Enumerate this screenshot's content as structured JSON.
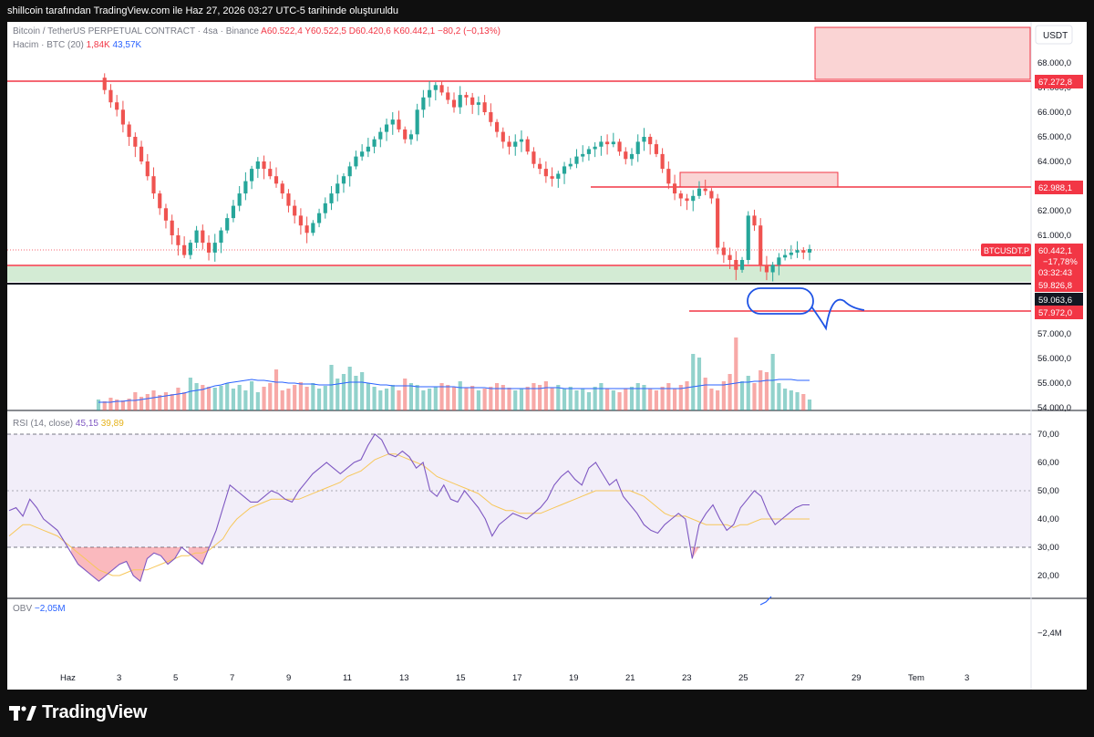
{
  "header": {
    "caption": "shillcoin tarafından TradingView.com ile Haz 27, 2026 03:27 UTC-5 tarihinde oluşturuldu"
  },
  "legend": {
    "symbol": "Bitcoin / TetherUS PERPETUAL CONTRACT · 4sa · Binance",
    "ohlc": "A60.522,4  Y60.522,5  D60.420,6  K60.442,1  −80,2 (−0,13%)",
    "volume_label": "Hacim · BTC (20)",
    "volume_value": "1,84K",
    "volume_ma": "43,57K",
    "rsi_label": "RSI (14, close)",
    "rsi_value": "45,15",
    "rsi_ma": "39,89",
    "obv_label": "OBV",
    "obv_value": "−2,05M"
  },
  "axis": {
    "currency": "USDT",
    "price_ticks": [
      "68.000,0",
      "67.000,0",
      "66.000,0",
      "65.000,0",
      "64.000,0",
      "63.000,0",
      "62.000,0",
      "61.000,0",
      "60.000,0",
      "59.000,0",
      "58.000,0",
      "57.000,0",
      "56.000,0",
      "55.000,0",
      "54.000,0"
    ],
    "rsi_ticks": [
      "70,00",
      "60,00",
      "50,00",
      "40,00",
      "30,00",
      "20,00"
    ],
    "obv_ticks": [
      "−2,4M"
    ],
    "x_ticks": [
      "Haz",
      "3",
      "5",
      "7",
      "9",
      "11",
      "13",
      "15",
      "17",
      "19",
      "21",
      "23",
      "25",
      "27",
      "29",
      "Tem",
      "3"
    ]
  },
  "price_labels": {
    "level_1": "67.272,8",
    "level_2": "62.988,1",
    "symbol_tag": "BTCUSDT.P",
    "last_price": "60.442,1",
    "change_pct": "−17,78%",
    "countdown": "03:32:43",
    "level_3": "59.826,8",
    "level_4": "59.063,6",
    "level_5": "57.972,0"
  },
  "colors": {
    "up": "#26a69a",
    "down": "#ef5350",
    "level_line": "#f23645",
    "rsi_line": "#7e57c2",
    "rsi_ma": "#f7c75a",
    "volume_ma": "#2962ff",
    "annotation": "#1e53e5"
  },
  "chart_data": {
    "type": "candlestick",
    "ylim": [
      54000,
      68600
    ],
    "closes": [
      67400,
      66900,
      66400,
      66100,
      65500,
      65000,
      64600,
      64000,
      63400,
      62700,
      62100,
      61600,
      61000,
      60600,
      60200,
      60700,
      61200,
      60700,
      60300,
      60700,
      61200,
      61700,
      62200,
      62700,
      63200,
      63700,
      64000,
      63700,
      63400,
      63100,
      62700,
      62200,
      61800,
      61400,
      61100,
      61500,
      61900,
      62300,
      62700,
      63100,
      63400,
      63800,
      64200,
      64400,
      64600,
      64900,
      65200,
      65500,
      65700,
      65300,
      64900,
      65100,
      66100,
      66600,
      66900,
      67100,
      66800,
      66500,
      66200,
      66700,
      66600,
      66300,
      66400,
      66000,
      65600,
      65200,
      64800,
      64600,
      64800,
      64900,
      64400,
      63900,
      63700,
      63400,
      63300,
      63500,
      63800,
      63900,
      64200,
      64300,
      64500,
      64600,
      64800,
      64700,
      64800,
      64400,
      64100,
      64300,
      64800,
      65000,
      64700,
      64300,
      63700,
      63100,
      62700,
      62500,
      62400,
      62600,
      62900,
      62800,
      62500,
      60500,
      60200,
      60000,
      59600,
      60000,
      61800,
      61400,
      59800,
      59500,
      59800,
      60100,
      60200,
      60300,
      60400,
      60300,
      60442
    ],
    "volume": [
      12,
      10,
      14,
      12,
      11,
      13,
      20,
      15,
      18,
      22,
      17,
      20,
      18,
      25,
      20,
      36,
      30,
      28,
      26,
      25,
      27,
      30,
      24,
      28,
      22,
      32,
      20,
      26,
      30,
      45,
      22,
      24,
      28,
      31,
      26,
      30,
      24,
      27,
      50,
      35,
      40,
      48,
      38,
      42,
      30,
      26,
      22,
      24,
      28,
      22,
      35,
      30,
      28,
      22,
      24,
      26,
      30,
      28,
      26,
      32,
      25,
      27,
      22,
      24,
      26,
      30,
      28,
      25,
      22,
      24,
      26,
      30,
      28,
      32,
      25,
      28,
      24,
      26,
      22,
      24,
      20,
      26,
      30,
      24,
      22,
      20,
      24,
      26,
      30,
      28,
      24,
      22,
      26,
      30,
      24,
      28,
      32,
      62,
      58,
      36,
      24,
      22,
      32,
      40,
      80,
      32,
      38,
      30,
      44,
      42,
      62,
      30,
      24,
      22,
      20,
      18,
      12
    ],
    "volume_ma": [
      9,
      9,
      9,
      10,
      10,
      11,
      11,
      12,
      13,
      14,
      15,
      16,
      17,
      18,
      19,
      21,
      22,
      23,
      25,
      27,
      28,
      30,
      31,
      32,
      33,
      34,
      33,
      33,
      32,
      31,
      31,
      30,
      30,
      29,
      29,
      29,
      28,
      28,
      28,
      29,
      30,
      31,
      31,
      31,
      30,
      29,
      28,
      28,
      27,
      27,
      27,
      27,
      26,
      26,
      26,
      26,
      26,
      26,
      26,
      25,
      25,
      25,
      25,
      25,
      24,
      24,
      24,
      24,
      24,
      24,
      24,
      24,
      24,
      25,
      25,
      25,
      24,
      24,
      24,
      24,
      24,
      24,
      24,
      24,
      24,
      24,
      24,
      24,
      24,
      24,
      24,
      24,
      24,
      24,
      24,
      24,
      25,
      26,
      27,
      28,
      28,
      28,
      28,
      29,
      30,
      31,
      31,
      32,
      32,
      33,
      33,
      34,
      34,
      34,
      33,
      33,
      33
    ],
    "rsi": [
      43,
      44,
      41,
      47,
      44,
      40,
      38,
      36,
      32,
      28,
      24,
      22,
      20,
      18,
      20,
      22,
      24,
      25,
      20,
      18,
      26,
      28,
      27,
      24,
      26,
      30,
      28,
      26,
      24,
      30,
      36,
      44,
      52,
      50,
      48,
      46,
      46,
      48,
      50,
      49,
      47,
      46,
      50,
      53,
      56,
      58,
      60,
      58,
      56,
      58,
      60,
      61,
      66,
      70,
      68,
      63,
      62,
      64,
      62,
      58,
      60,
      50,
      48,
      52,
      47,
      46,
      50,
      47,
      44,
      40,
      34,
      38,
      40,
      42,
      41,
      40,
      42,
      44,
      47,
      52,
      55,
      57,
      54,
      52,
      58,
      60,
      56,
      52,
      54,
      48,
      45,
      42,
      38,
      36,
      35,
      38,
      40,
      42,
      40,
      26,
      38,
      42,
      45,
      40,
      36,
      38,
      44,
      47,
      50,
      48,
      42,
      38,
      40,
      42,
      44,
      45,
      45
    ],
    "rsi_ma": [
      34,
      36,
      38,
      38,
      37,
      36,
      35,
      34,
      32,
      30,
      28,
      26,
      24,
      22,
      21,
      20,
      20,
      21,
      22,
      22,
      22,
      23,
      24,
      25,
      26,
      27,
      27,
      28,
      28,
      29,
      31,
      33,
      37,
      40,
      42,
      44,
      45,
      46,
      47,
      47,
      47,
      47,
      47,
      48,
      49,
      50,
      51,
      52,
      53,
      55,
      56,
      57,
      59,
      61,
      62,
      63,
      63,
      62,
      61,
      60,
      59,
      57,
      55,
      54,
      53,
      52,
      51,
      50,
      49,
      47,
      45,
      44,
      43,
      43,
      42,
      42,
      42,
      42,
      43,
      44,
      45,
      46,
      47,
      48,
      49,
      50,
      50,
      50,
      50,
      50,
      50,
      49,
      48,
      46,
      44,
      42,
      41,
      41,
      41,
      40,
      39,
      38,
      38,
      38,
      38,
      37,
      38,
      38,
      39,
      40,
      40,
      40,
      40,
      40,
      40,
      40,
      40
    ]
  }
}
